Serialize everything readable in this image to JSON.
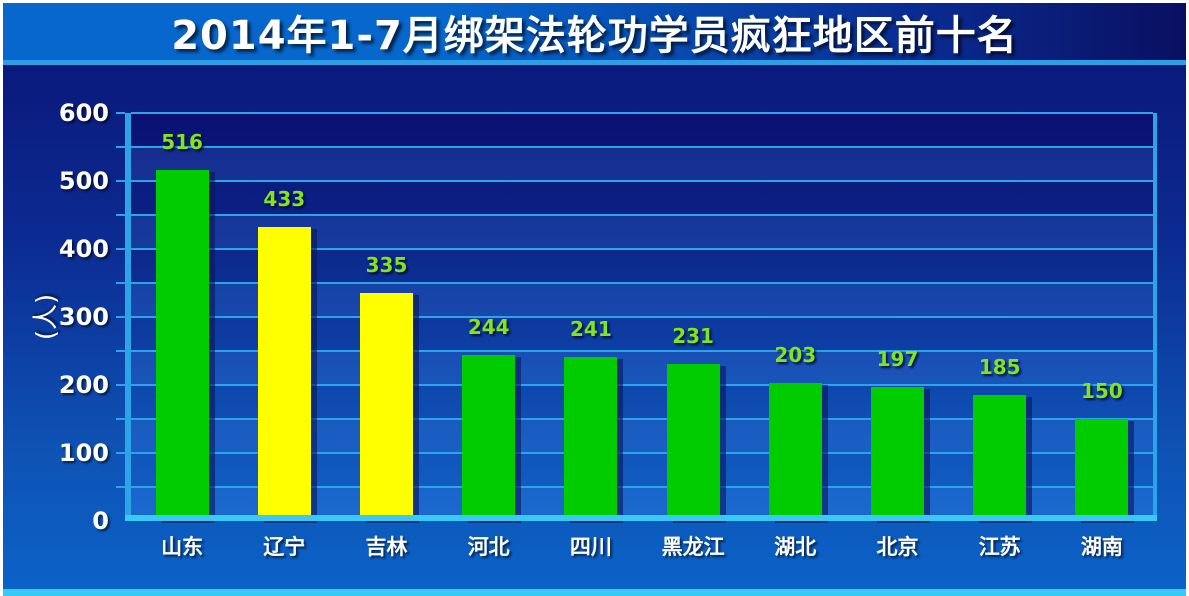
{
  "chart_data": {
    "type": "bar",
    "title": "2014年1-7月绑架法轮功学员疯狂地区前十名",
    "categories": [
      "山东",
      "辽宁",
      "吉林",
      "河北",
      "四川",
      "黑龙江",
      "湖北",
      "北京",
      "江苏",
      "湖南"
    ],
    "values": [
      516,
      433,
      335,
      244,
      241,
      231,
      203,
      197,
      185,
      150
    ],
    "bar_colors": [
      "#00cc00",
      "#ffff00",
      "#ffff00",
      "#00cc00",
      "#00cc00",
      "#00cc00",
      "#00cc00",
      "#00cc00",
      "#00cc00",
      "#00cc00"
    ],
    "value_labels": [
      "516",
      "433",
      "335",
      "244",
      "241",
      "231",
      "203",
      "197",
      "185",
      "150"
    ],
    "xlabel": "",
    "ylabel": "(人)",
    "ylim": [
      0,
      600
    ],
    "yticks": [
      0,
      100,
      200,
      300,
      400,
      500,
      600
    ],
    "gridline_interval": 50,
    "grid": true,
    "legend": null
  },
  "colors": {
    "bar_green": "#00cc00",
    "bar_yellow": "#ffff00",
    "value_label_green": "#80e41e",
    "axis_cyan": "#2ba4e8",
    "baseline_cyan": "#38caf4",
    "title_underline_cyan": "#2e9fe6",
    "bottom_strip_cyan": "#38caf4",
    "title_text": "#ffffff",
    "tick_text": "#ffffff"
  }
}
